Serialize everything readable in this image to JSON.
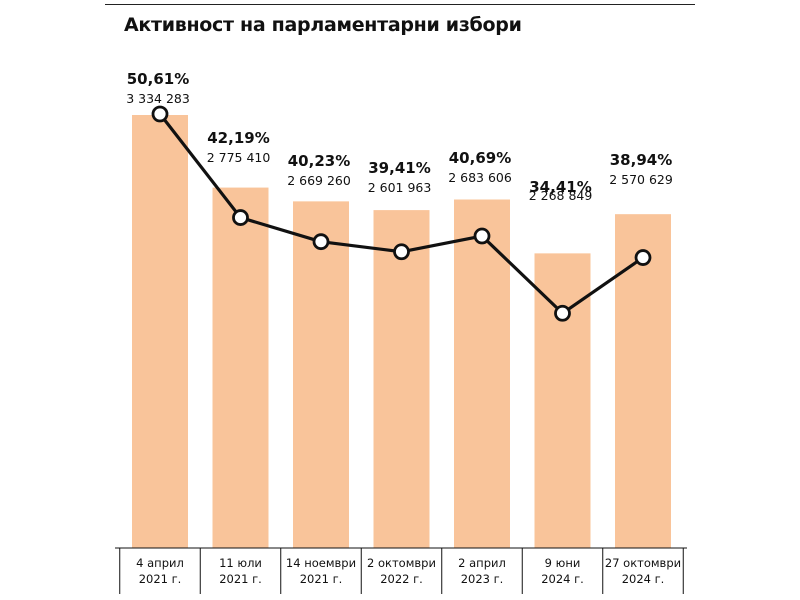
{
  "chart_data": {
    "type": "bar",
    "title": "Активност на парламентарни избори",
    "categories": [
      [
        "4 април",
        "2021 г."
      ],
      [
        "11 юли",
        "2021 г."
      ],
      [
        "14 ноември",
        "2021 г."
      ],
      [
        "2 октомври",
        "2022 г."
      ],
      [
        "2 април",
        "2023 г."
      ],
      [
        "9 юни",
        "2024 г."
      ],
      [
        "27 октомври",
        "2024 г."
      ]
    ],
    "series": [
      {
        "type": "bar",
        "values": [
          3334283,
          2775410,
          2669260,
          2601963,
          2683606,
          2268849,
          2570629
        ],
        "labels": [
          "3 334 283",
          "2 775 410",
          "2 669 260",
          "2 601 963",
          "2 683 606",
          "2 268 849",
          "2 570 629"
        ]
      },
      {
        "type": "line",
        "values": [
          50.61,
          42.19,
          40.23,
          39.41,
          40.69,
          34.41,
          38.94
        ],
        "labels": [
          "50,61%",
          "42,19%",
          "40,23%",
          "39,41%",
          "40,69%",
          "34,41%",
          "38,94%"
        ]
      }
    ],
    "colors": {
      "bar": "#f9c49a",
      "line": "#111111",
      "marker_fill": "#ffffff",
      "axis": "#111111"
    },
    "grid": false,
    "legend": "none"
  }
}
